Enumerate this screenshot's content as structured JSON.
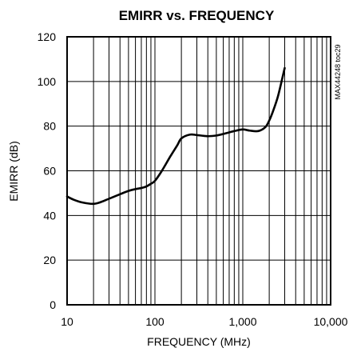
{
  "chart_data": {
    "type": "line",
    "title": "EMIRR vs. FREQUENCY",
    "xlabel": "FREQUENCY (MHz)",
    "ylabel": "EMIRR (dB)",
    "x_scale": "log",
    "xlim": [
      10,
      10000
    ],
    "ylim": [
      0,
      120
    ],
    "x_ticks": [
      10,
      100,
      1000,
      10000
    ],
    "x_tick_labels": [
      "10",
      "100",
      "1,000",
      "10,000"
    ],
    "y_ticks": [
      0,
      20,
      40,
      60,
      80,
      100,
      120
    ],
    "y_tick_labels": [
      "0",
      "20",
      "40",
      "60",
      "80",
      "100",
      "120"
    ],
    "grid": true,
    "annotation": "MAX44248 toc29",
    "series": [
      {
        "x": [
          10,
          12,
          15,
          20,
          25,
          30,
          40,
          50,
          60,
          70,
          80,
          90,
          100,
          120,
          150,
          180,
          200,
          250,
          300,
          400,
          500,
          600,
          700,
          800,
          1000,
          1200,
          1500,
          1800,
          2000,
          2200,
          2500,
          2800,
          3000
        ],
        "y": [
          48.5,
          47,
          45.8,
          45.2,
          46.2,
          47.5,
          49.5,
          51,
          51.8,
          52.3,
          53,
          54.2,
          55.5,
          60,
          66.5,
          71.5,
          74.5,
          76.2,
          76,
          75.5,
          75.8,
          76.5,
          77.2,
          77.8,
          78.5,
          78,
          77.8,
          79.5,
          82.5,
          86.5,
          93,
          101,
          106
        ]
      }
    ]
  }
}
